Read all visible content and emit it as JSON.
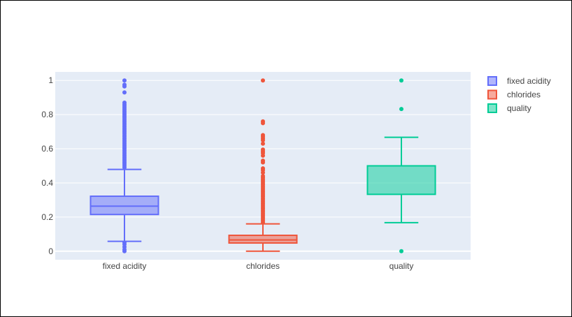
{
  "chart_data": {
    "type": "box",
    "categories": [
      "fixed acidity",
      "chlorides",
      "quality"
    ],
    "ylim": [
      -0.05,
      1.05
    ],
    "yticks": [
      0,
      0.2,
      0.4,
      0.6,
      0.8,
      1
    ],
    "ytick_labels": [
      "0",
      "0.2",
      "0.4",
      "0.6",
      "0.8",
      "1"
    ],
    "grid": true,
    "legend_placement": "top-right",
    "series": [
      {
        "name": "fixed acidity",
        "color": "#636efa",
        "q1": 0.215,
        "median": 0.264,
        "q3": 0.322,
        "lowerfence": 0.058,
        "upperfence": 0.479,
        "outliers": [
          0.0,
          0.01,
          0.025,
          0.04,
          0.05,
          0.49,
          0.5,
          0.51,
          0.52,
          0.53,
          0.54,
          0.55,
          0.56,
          0.57,
          0.58,
          0.59,
          0.6,
          0.61,
          0.62,
          0.63,
          0.64,
          0.65,
          0.66,
          0.67,
          0.68,
          0.69,
          0.7,
          0.71,
          0.72,
          0.73,
          0.74,
          0.75,
          0.76,
          0.77,
          0.78,
          0.79,
          0.8,
          0.81,
          0.82,
          0.83,
          0.84,
          0.85,
          0.86,
          0.87,
          0.93,
          0.965,
          0.975,
          1.0
        ]
      },
      {
        "name": "chlorides",
        "color": "#ef553b",
        "q1": 0.048,
        "median": 0.066,
        "q3": 0.093,
        "lowerfence": 0.0,
        "upperfence": 0.16,
        "outliers": [
          0.17,
          0.18,
          0.19,
          0.2,
          0.21,
          0.22,
          0.23,
          0.24,
          0.25,
          0.26,
          0.27,
          0.28,
          0.29,
          0.3,
          0.31,
          0.32,
          0.33,
          0.34,
          0.35,
          0.36,
          0.37,
          0.38,
          0.39,
          0.4,
          0.41,
          0.42,
          0.43,
          0.44,
          0.46,
          0.475,
          0.485,
          0.52,
          0.53,
          0.56,
          0.575,
          0.585,
          0.595,
          0.63,
          0.65,
          0.66,
          0.67,
          0.68,
          0.75,
          0.76,
          1.0
        ]
      },
      {
        "name": "quality",
        "color": "#00cc96",
        "q1": 0.333,
        "median": 0.5,
        "q3": 0.5,
        "lowerfence": 0.167,
        "upperfence": 0.667,
        "outliers": [
          0.0,
          0.833,
          1.0
        ]
      }
    ]
  }
}
